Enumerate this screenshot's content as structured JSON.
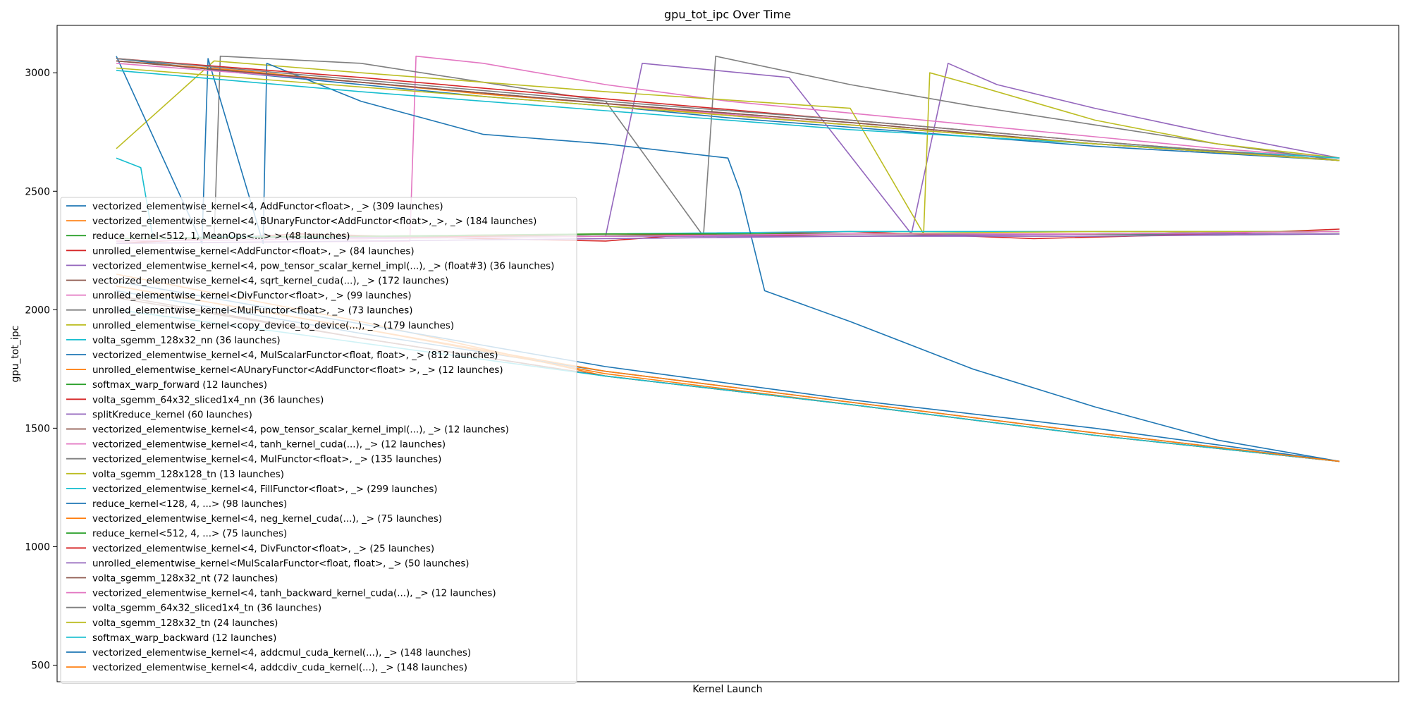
{
  "chart_data": {
    "type": "line",
    "title": "gpu_tot_ipc Over Time",
    "xlabel": "Kernel Launch",
    "ylabel": "gpu_tot_ipc",
    "x_range": [
      0,
      1
    ],
    "ylim": [
      430,
      3200
    ],
    "yticks": [
      500,
      1000,
      1500,
      2000,
      2500,
      3000
    ],
    "grid": false,
    "legend_position": "lower-left",
    "colors": [
      "#1f77b4",
      "#ff7f0e",
      "#2ca02c",
      "#d62728",
      "#9467bd",
      "#8c564b",
      "#e377c2",
      "#7f7f7f",
      "#bcbd22",
      "#17becf"
    ],
    "series": [
      {
        "name": "vectorized_elementwise_kernel<4, AddFunctor<float>, _> (309 launches)",
        "x": [
          0,
          0.05,
          0.1,
          0.2,
          0.3,
          0.4,
          0.5,
          0.6,
          0.7,
          0.8,
          0.9,
          1.0
        ],
        "values": [
          3060,
          3030,
          3000,
          2950,
          2900,
          2860,
          2810,
          2770,
          2730,
          2690,
          2660,
          2630
        ]
      },
      {
        "name": "vectorized_elementwise_kernel<4, BUnaryFunctor<AddFunctor<float>,_>, _> (184 launches)",
        "x": [
          0,
          0.1,
          0.2,
          0.3,
          0.4,
          0.5,
          0.6,
          0.7,
          0.8,
          0.9,
          1.0
        ],
        "values": [
          3050,
          3010,
          2960,
          2910,
          2870,
          2820,
          2780,
          2740,
          2700,
          2670,
          2640
        ]
      },
      {
        "name": "reduce_kernel<512, 1, MeanOps<...> > (48 launches)",
        "x": [
          0,
          0.15,
          0.3,
          0.45,
          0.6,
          0.75,
          0.9,
          1.0
        ],
        "values": [
          2300,
          2310,
          2305,
          2315,
          2310,
          2320,
          2315,
          2320
        ]
      },
      {
        "name": "unrolled_elementwise_kernel<AddFunctor<float>, _> (84 launches)",
        "x": [
          0,
          0.15,
          0.3,
          0.4,
          0.45,
          0.6,
          0.75,
          0.9,
          1.0
        ],
        "values": [
          2280,
          2320,
          2300,
          2290,
          2310,
          2330,
          2300,
          2320,
          2340
        ]
      },
      {
        "name": "vectorized_elementwise_kernel<4, pow_tensor_scalar_kernel_impl(...), _> (float#3) (36 launches)",
        "x": [
          0,
          0.4,
          0.43,
          0.55,
          0.65,
          0.68,
          0.72,
          0.8,
          0.9,
          1.0
        ],
        "values": [
          2300,
          2310,
          3040,
          2980,
          2320,
          3040,
          2950,
          2850,
          2740,
          2640
        ]
      },
      {
        "name": "vectorized_elementwise_kernel<4, sqrt_kernel_cuda(...), _> (172 launches)",
        "x": [
          0,
          0.2,
          0.4,
          0.6,
          0.8,
          1.0
        ],
        "values": [
          2050,
          1880,
          1720,
          1600,
          1470,
          1360
        ]
      },
      {
        "name": "unrolled_elementwise_kernel<DivFunctor<float>, _> (99 launches)",
        "x": [
          0,
          0.24,
          0.245,
          0.3,
          0.4,
          0.5,
          0.6,
          0.7,
          0.8,
          0.9,
          1.0
        ],
        "values": [
          2280,
          2290,
          3070,
          3040,
          2950,
          2880,
          2830,
          2780,
          2730,
          2680,
          2640
        ]
      },
      {
        "name": "unrolled_elementwise_kernel<MulFunctor<float>, _> (73 launches)",
        "x": [
          0,
          0.08,
          0.085,
          0.2,
          0.3,
          0.4,
          0.48,
          0.49,
          0.6,
          0.7,
          0.8,
          0.9,
          1.0
        ],
        "values": [
          2300,
          2300,
          3070,
          3040,
          2960,
          2880,
          2310,
          3070,
          2950,
          2860,
          2780,
          2700,
          2630
        ]
      },
      {
        "name": "unrolled_elementwise_kernel<copy_device_to_device(...), _> (179 launches)",
        "x": [
          0,
          0.08,
          0.2,
          0.4,
          0.6,
          0.66,
          0.665,
          0.7,
          0.8,
          0.9,
          1.0
        ],
        "values": [
          2680,
          3050,
          3000,
          2920,
          2850,
          2320,
          3000,
          2950,
          2800,
          2700,
          2640
        ]
      },
      {
        "name": "volta_sgemm_128x32_nn (36 launches)",
        "x": [
          0,
          0.02,
          0.03,
          0.1,
          0.2,
          0.4,
          0.6,
          0.8,
          1.0
        ],
        "values": [
          2640,
          2600,
          2300,
          2310,
          2300,
          2320,
          2330,
          2330,
          2330
        ]
      },
      {
        "name": "vectorized_elementwise_kernel<4, MulScalarFunctor<float, float>, _> (812 launches)",
        "x": [
          0,
          0.07,
          0.075,
          0.12,
          0.123,
          0.2,
          0.3,
          0.4,
          0.5,
          0.51,
          0.53,
          0.6,
          0.7,
          0.8,
          0.9,
          1.0
        ],
        "values": [
          3070,
          2280,
          3060,
          2280,
          3040,
          2880,
          2740,
          2700,
          2640,
          2500,
          2080,
          1950,
          1750,
          1590,
          1450,
          1360
        ]
      },
      {
        "name": "unrolled_elementwise_kernel<AUnaryFunctor<AddFunctor<float> >, _> (12 launches)",
        "x": [
          0,
          0.2,
          0.4,
          0.6,
          0.8,
          1.0
        ],
        "values": [
          2150,
          1950,
          1720,
          1600,
          1470,
          1360
        ]
      },
      {
        "name": "softmax_warp_forward (12 launches)",
        "x": [
          0,
          0.2,
          0.4,
          0.6,
          0.8,
          1.0
        ],
        "values": [
          2300,
          2310,
          2310,
          2320,
          2320,
          2330
        ]
      },
      {
        "name": "volta_sgemm_64x32_sliced1x4_nn (36 launches)",
        "x": [
          0,
          0.2,
          0.4,
          0.6,
          0.8,
          1.0
        ],
        "values": [
          2290,
          2300,
          2320,
          2310,
          2320,
          2330
        ]
      },
      {
        "name": "splitKreduce_kernel (60 launches)",
        "x": [
          0,
          0.2,
          0.4,
          0.6,
          0.8,
          1.0
        ],
        "values": [
          2280,
          2290,
          2300,
          2310,
          2310,
          2320
        ]
      },
      {
        "name": "vectorized_elementwise_kernel<4, pow_tensor_scalar_kernel_impl(...), _> (12 launches)",
        "x": [
          0,
          0.2,
          0.4,
          0.6,
          0.8,
          1.0
        ],
        "values": [
          2060,
          1880,
          1720,
          1600,
          1470,
          1360
        ]
      },
      {
        "name": "vectorized_elementwise_kernel<4, tanh_kernel_cuda(...), _> (12 launches)",
        "x": [
          0,
          0.2,
          0.4,
          0.6,
          0.8,
          1.0
        ],
        "values": [
          3040,
          2960,
          2870,
          2780,
          2700,
          2630
        ]
      },
      {
        "name": "vectorized_elementwise_kernel<4, MulFunctor<float>, _> (135 launches)",
        "x": [
          0,
          0.2,
          0.4,
          0.6,
          0.8,
          1.0
        ],
        "values": [
          3050,
          2960,
          2870,
          2790,
          2700,
          2630
        ]
      },
      {
        "name": "volta_sgemm_128x128_tn (13 launches)",
        "x": [
          0,
          0.2,
          0.4,
          0.6,
          0.8,
          1.0
        ],
        "values": [
          2300,
          2310,
          2320,
          2320,
          2330,
          2330
        ]
      },
      {
        "name": "vectorized_elementwise_kernel<4, FillFunctor<float>, _> (299 launches)",
        "x": [
          0,
          0.2,
          0.4,
          0.6,
          0.8,
          1.0
        ],
        "values": [
          3010,
          2920,
          2840,
          2760,
          2700,
          2640
        ]
      },
      {
        "name": "reduce_kernel<128, 4, ...> (98 launches)",
        "x": [
          0,
          0.2,
          0.4,
          0.6,
          0.8,
          1.0
        ],
        "values": [
          2080,
          1900,
          1740,
          1610,
          1480,
          1360
        ]
      },
      {
        "name": "vectorized_elementwise_kernel<4, neg_kernel_cuda(...), _> (75 launches)",
        "x": [
          0,
          0.2,
          0.4,
          0.6,
          0.8,
          1.0
        ],
        "values": [
          2100,
          1920,
          1730,
          1600,
          1470,
          1360
        ]
      },
      {
        "name": "reduce_kernel<512, 4, ...> (75 launches)",
        "x": [
          0,
          0.2,
          0.4,
          0.6,
          0.8,
          1.0
        ],
        "values": [
          2300,
          2310,
          2320,
          2320,
          2320,
          2330
        ]
      },
      {
        "name": "vectorized_elementwise_kernel<4, DivFunctor<float>, _> (25 launches)",
        "x": [
          0,
          0.2,
          0.4,
          0.6,
          0.8,
          1.0
        ],
        "values": [
          3060,
          2980,
          2890,
          2800,
          2710,
          2630
        ]
      },
      {
        "name": "unrolled_elementwise_kernel<MulScalarFunctor<float, float>, _> (50 launches)",
        "x": [
          0,
          0.2,
          0.4,
          0.6,
          0.8,
          1.0
        ],
        "values": [
          2290,
          2300,
          2310,
          2310,
          2320,
          2320
        ]
      },
      {
        "name": "volta_sgemm_128x32_nt (72 launches)",
        "x": [
          0,
          0.2,
          0.4,
          0.6,
          0.8,
          1.0
        ],
        "values": [
          3050,
          2960,
          2870,
          2790,
          2700,
          2630
        ]
      },
      {
        "name": "vectorized_elementwise_kernel<4, tanh_backward_kernel_cuda(...), _> (12 launches)",
        "x": [
          0,
          0.2,
          0.4,
          0.6,
          0.8,
          1.0
        ],
        "values": [
          2290,
          2300,
          2310,
          2320,
          2320,
          2330
        ]
      },
      {
        "name": "volta_sgemm_64x32_sliced1x4_tn (36 launches)",
        "x": [
          0,
          0.2,
          0.4,
          0.6,
          0.8,
          1.0
        ],
        "values": [
          3060,
          2970,
          2880,
          2800,
          2710,
          2630
        ]
      },
      {
        "name": "volta_sgemm_128x32_tn (24 launches)",
        "x": [
          0,
          0.2,
          0.4,
          0.6,
          0.8,
          1.0
        ],
        "values": [
          3020,
          2940,
          2860,
          2780,
          2700,
          2630
        ]
      },
      {
        "name": "softmax_warp_backward (12 launches)",
        "x": [
          0,
          0.2,
          0.4,
          0.6,
          0.8,
          1.0
        ],
        "values": [
          2000,
          1860,
          1720,
          1600,
          1470,
          1360
        ]
      },
      {
        "name": "vectorized_elementwise_kernel<4, addcmul_cuda_kernel(...), _> (148 launches)",
        "x": [
          0,
          0.2,
          0.4,
          0.6,
          0.8,
          1.0
        ],
        "values": [
          2120,
          1940,
          1760,
          1620,
          1500,
          1360
        ]
      },
      {
        "name": "vectorized_elementwise_kernel<4, addcdiv_cuda_kernel(...), _> (148 launches)",
        "x": [
          0,
          0.2,
          0.4,
          0.6,
          0.8,
          1.0
        ],
        "values": [
          2100,
          1920,
          1740,
          1610,
          1480,
          1360
        ]
      }
    ]
  }
}
